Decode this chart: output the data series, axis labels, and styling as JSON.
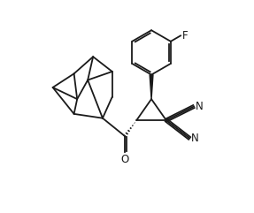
{
  "background_color": "#ffffff",
  "line_color": "#1a1a1a",
  "line_width": 1.3,
  "fig_width": 2.87,
  "fig_height": 2.41,
  "dpi": 100,
  "xlim": [
    0,
    10
  ],
  "ylim": [
    0,
    10
  ]
}
